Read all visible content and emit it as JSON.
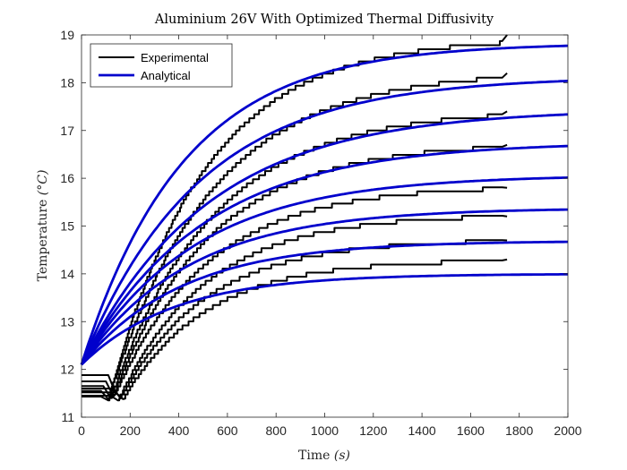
{
  "chart_data": {
    "type": "line",
    "title": "Aluminium 26V With Optimized Thermal Diffusivity",
    "xlabel_text": "Time ",
    "xlabel_unit": "(s)",
    "ylabel_text": "Temperature ",
    "ylabel_unit": "(°C)",
    "xlim": [
      0,
      2000
    ],
    "ylim": [
      11,
      19
    ],
    "xticks": [
      "0",
      "200",
      "400",
      "600",
      "800",
      "1000",
      "1200",
      "1400",
      "1600",
      "1800",
      "2000"
    ],
    "yticks": [
      "11",
      "12",
      "13",
      "14",
      "15",
      "16",
      "17",
      "18",
      "19"
    ],
    "grid": false,
    "legend_position": "top-left",
    "legend": [
      "Experimental",
      "Analytical"
    ],
    "colors": {
      "experimental": "#000000",
      "analytical": "#0000cc",
      "axis": "#262626"
    },
    "analytical": {
      "start_value": 12.1,
      "series": [
        {
          "final": 18.83,
          "time_constant": 420
        },
        {
          "final": 18.13,
          "time_constant": 480
        },
        {
          "final": 17.45,
          "time_constant": 520
        },
        {
          "final": 16.76,
          "time_constant": 500
        },
        {
          "final": 16.07,
          "time_constant": 470
        },
        {
          "final": 15.38,
          "time_constant": 440
        },
        {
          "final": 14.69,
          "time_constant": 410
        },
        {
          "final": 14.0,
          "time_constant": 380
        }
      ]
    },
    "experimental": {
      "series": [
        {
          "initial": 11.43,
          "dip_time": 110,
          "dip_value": 11.35,
          "final": 18.95,
          "time_constant": 390,
          "end_time": 1750,
          "end_value": 19.0
        },
        {
          "initial": 11.55,
          "dip_time": 110,
          "dip_value": 11.38,
          "final": 18.25,
          "time_constant": 420,
          "end_time": 1750,
          "end_value": 18.2
        },
        {
          "initial": 11.65,
          "dip_time": 120,
          "dip_value": 11.4,
          "final": 17.45,
          "time_constant": 420,
          "end_time": 1750,
          "end_value": 17.4
        },
        {
          "initial": 11.75,
          "dip_time": 130,
          "dip_value": 11.45,
          "final": 16.75,
          "time_constant": 400,
          "end_time": 1750,
          "end_value": 16.7
        },
        {
          "initial": 11.88,
          "dip_time": 140,
          "dip_value": 11.5,
          "final": 15.85,
          "time_constant": 380,
          "end_time": 1750,
          "end_value": 15.8
        },
        {
          "initial": 11.45,
          "dip_time": 150,
          "dip_value": 11.35,
          "final": 15.25,
          "time_constant": 360,
          "end_time": 1750,
          "end_value": 15.2
        },
        {
          "initial": 11.6,
          "dip_time": 160,
          "dip_value": 11.4,
          "final": 14.72,
          "time_constant": 350,
          "end_time": 1750,
          "end_value": 14.7
        },
        {
          "initial": 11.52,
          "dip_time": 170,
          "dip_value": 11.38,
          "final": 14.3,
          "time_constant": 340,
          "end_time": 1750,
          "end_value": 14.3
        }
      ]
    }
  }
}
